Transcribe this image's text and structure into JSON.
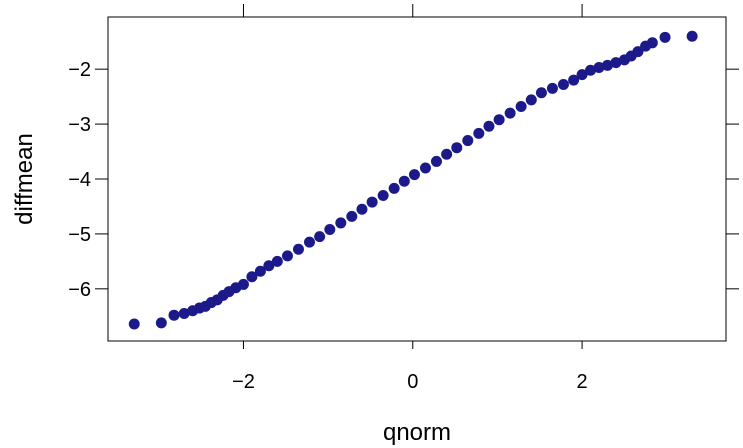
{
  "chart_data": {
    "type": "scatter",
    "title": "",
    "xlabel": "qnorm",
    "ylabel": "diffmean",
    "xlim": [
      -3.6,
      3.7
    ],
    "ylim": [
      -6.95,
      -1.05
    ],
    "x_ticks": [
      -2,
      0,
      2
    ],
    "y_ticks": [
      -6,
      -5,
      -4,
      -3,
      -2
    ],
    "x_tick_labels": [
      "−2",
      "0",
      "2"
    ],
    "y_tick_labels": [
      "−6",
      "−5",
      "−4",
      "−3",
      "−2"
    ],
    "grid": false,
    "legend": "none",
    "point_color": "#1c1a8a",
    "series": [
      {
        "x": [
          -3.29,
          -2.97,
          -2.82,
          -2.7,
          -2.6,
          -2.52,
          -2.45,
          -2.38,
          -2.31,
          -2.24,
          -2.17,
          -2.09,
          -2.0,
          -1.9,
          -1.8,
          -1.7,
          -1.6,
          -1.48,
          -1.35,
          -1.22,
          -1.1,
          -0.98,
          -0.85,
          -0.72,
          -0.6,
          -0.48,
          -0.35,
          -0.22,
          -0.1,
          0.02,
          0.15,
          0.28,
          0.4,
          0.52,
          0.65,
          0.78,
          0.9,
          1.02,
          1.15,
          1.28,
          1.4,
          1.52,
          1.65,
          1.78,
          1.9,
          2.0,
          2.1,
          2.2,
          2.3,
          2.4,
          2.5,
          2.58,
          2.66,
          2.75,
          2.83,
          2.98,
          3.3
        ],
        "y": [
          -6.64,
          -6.62,
          -6.48,
          -6.45,
          -6.4,
          -6.35,
          -6.32,
          -6.25,
          -6.2,
          -6.12,
          -6.05,
          -5.98,
          -5.92,
          -5.78,
          -5.68,
          -5.58,
          -5.5,
          -5.4,
          -5.28,
          -5.15,
          -5.05,
          -4.92,
          -4.8,
          -4.68,
          -4.55,
          -4.42,
          -4.3,
          -4.17,
          -4.04,
          -3.92,
          -3.8,
          -3.68,
          -3.55,
          -3.43,
          -3.3,
          -3.17,
          -3.04,
          -2.92,
          -2.8,
          -2.68,
          -2.56,
          -2.43,
          -2.35,
          -2.28,
          -2.2,
          -2.1,
          -2.02,
          -1.97,
          -1.93,
          -1.88,
          -1.83,
          -1.76,
          -1.68,
          -1.58,
          -1.52,
          -1.42,
          -1.4
        ]
      }
    ]
  }
}
